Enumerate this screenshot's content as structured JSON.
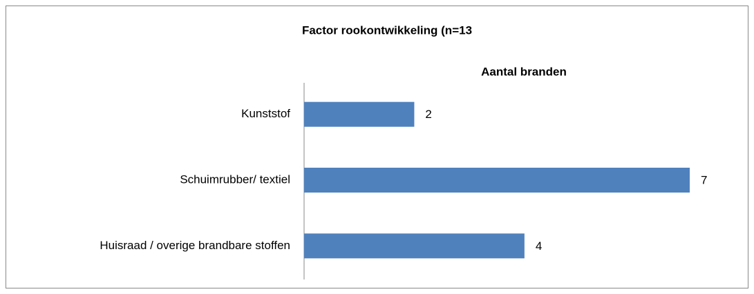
{
  "chart_data": {
    "type": "bar",
    "orientation": "horizontal",
    "title": "Factor rookontwikkeling  (n=13",
    "categories": [
      "Kunststof",
      "Schuimrubber/ textiel",
      "Huisraad / overige brandbare stoffen"
    ],
    "series": [
      {
        "name": "Aantal branden",
        "color": "#4f81bd",
        "values": [
          2,
          7,
          4
        ]
      }
    ],
    "xlim": [
      0,
      7
    ]
  }
}
